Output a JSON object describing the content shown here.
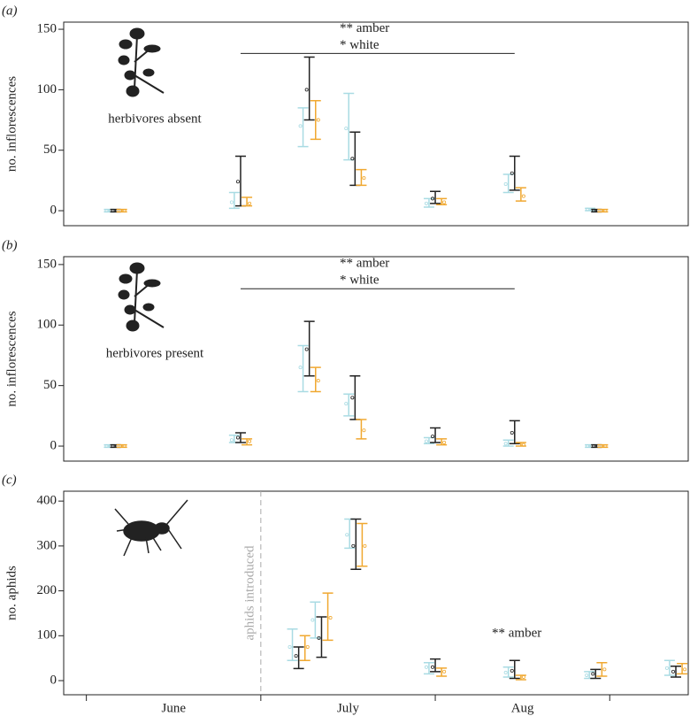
{
  "chart_data": [
    {
      "type": "errorbar",
      "panel_label": "(a)",
      "ylabel": "no. inflorescences",
      "inset_label": "herbivores absent",
      "annotations": [
        "** amber",
        "* white"
      ],
      "bracket": {
        "x": [
          0.884,
          2.455
        ],
        "y": 130
      },
      "x": [
        0.167,
        0.884,
        1.278,
        1.54,
        2.0,
        2.455,
        2.924
      ],
      "xlim": [
        -0.13,
        3.45
      ],
      "ylim": [
        -12.4,
        155.9
      ],
      "yticks": [
        0,
        50,
        100,
        150
      ],
      "series": [
        {
          "color": "#a9dbe3",
          "values": [
            0,
            7,
            70,
            68,
            6,
            22,
            1
          ],
          "lower": [
            -1,
            2,
            53,
            42,
            3,
            15,
            0
          ],
          "upper": [
            1,
            15,
            85,
            97,
            10,
            30,
            2
          ]
        },
        {
          "color": "#222222",
          "values": [
            0,
            24,
            100,
            43,
            10,
            31,
            0
          ],
          "lower": [
            -1,
            4,
            75,
            21,
            6,
            17,
            -1
          ],
          "upper": [
            1,
            45,
            127,
            65,
            16,
            45,
            1
          ]
        },
        {
          "color": "#f0a830",
          "values": [
            0,
            6,
            75,
            27,
            7,
            12,
            0
          ],
          "lower": [
            -1,
            4,
            59,
            21,
            5,
            8,
            -1
          ],
          "upper": [
            1,
            11,
            91,
            34,
            10,
            19,
            1
          ]
        }
      ]
    },
    {
      "type": "errorbar",
      "panel_label": "(b)",
      "ylabel": "no. inflorescences",
      "inset_label": "herbivores present",
      "annotations": [
        "** amber",
        "* white"
      ],
      "bracket": {
        "x": [
          0.884,
          2.455
        ],
        "y": 130
      },
      "x": [
        0.167,
        0.884,
        1.278,
        1.54,
        2.0,
        2.455,
        2.924
      ],
      "xlim": [
        -0.13,
        3.45
      ],
      "ylim": [
        -12.4,
        156.5
      ],
      "yticks": [
        0,
        50,
        100,
        150
      ],
      "series": [
        {
          "color": "#a9dbe3",
          "values": [
            0,
            5,
            65,
            35,
            4,
            2,
            0
          ],
          "lower": [
            -1,
            3,
            45,
            25,
            2,
            0,
            -1
          ],
          "upper": [
            1,
            9,
            83,
            43,
            7,
            5,
            1
          ]
        },
        {
          "color": "#222222",
          "values": [
            0,
            7,
            80,
            40,
            8,
            11,
            0
          ],
          "lower": [
            -1,
            3,
            58,
            22,
            3,
            2,
            -1
          ],
          "upper": [
            1,
            11,
            103,
            58,
            15,
            21,
            1
          ]
        },
        {
          "color": "#f0a830",
          "values": [
            0,
            4,
            54,
            13,
            3,
            1,
            0
          ],
          "lower": [
            -1,
            1,
            45,
            6,
            1,
            0,
            -1
          ],
          "upper": [
            1,
            6,
            65,
            22,
            6,
            3,
            1
          ]
        }
      ]
    },
    {
      "type": "errorbar",
      "panel_label": "(c)",
      "ylabel": "no. aphids",
      "annotations": [
        "** amber"
      ],
      "event": {
        "x": 1.0,
        "label": "aphids introduced"
      },
      "months": [
        "June",
        "July",
        "Aug"
      ],
      "x": [
        1.217,
        1.348,
        1.545,
        2.0,
        2.455,
        2.919,
        3.379
      ],
      "xlim": [
        -0.13,
        3.45
      ],
      "ylim": [
        -31.5,
        422
      ],
      "yticks": [
        0,
        100,
        200,
        300,
        400
      ],
      "series": [
        {
          "color": "#a9dbe3",
          "values": [
            75,
            135,
            325,
            30,
            18,
            12,
            28
          ],
          "lower": [
            45,
            95,
            295,
            15,
            8,
            5,
            12
          ],
          "upper": [
            115,
            175,
            360,
            40,
            30,
            20,
            45
          ]
        },
        {
          "color": "#222222",
          "values": [
            55,
            95,
            300,
            30,
            22,
            15,
            20
          ],
          "lower": [
            27,
            52,
            248,
            20,
            5,
            5,
            8
          ],
          "upper": [
            75,
            142,
            360,
            48,
            45,
            25,
            32
          ]
        },
        {
          "color": "#f0a830",
          "values": [
            75,
            140,
            300,
            20,
            8,
            25,
            25
          ],
          "lower": [
            45,
            90,
            255,
            10,
            2,
            10,
            15
          ],
          "upper": [
            100,
            195,
            350,
            28,
            12,
            40,
            38
          ]
        }
      ]
    }
  ]
}
